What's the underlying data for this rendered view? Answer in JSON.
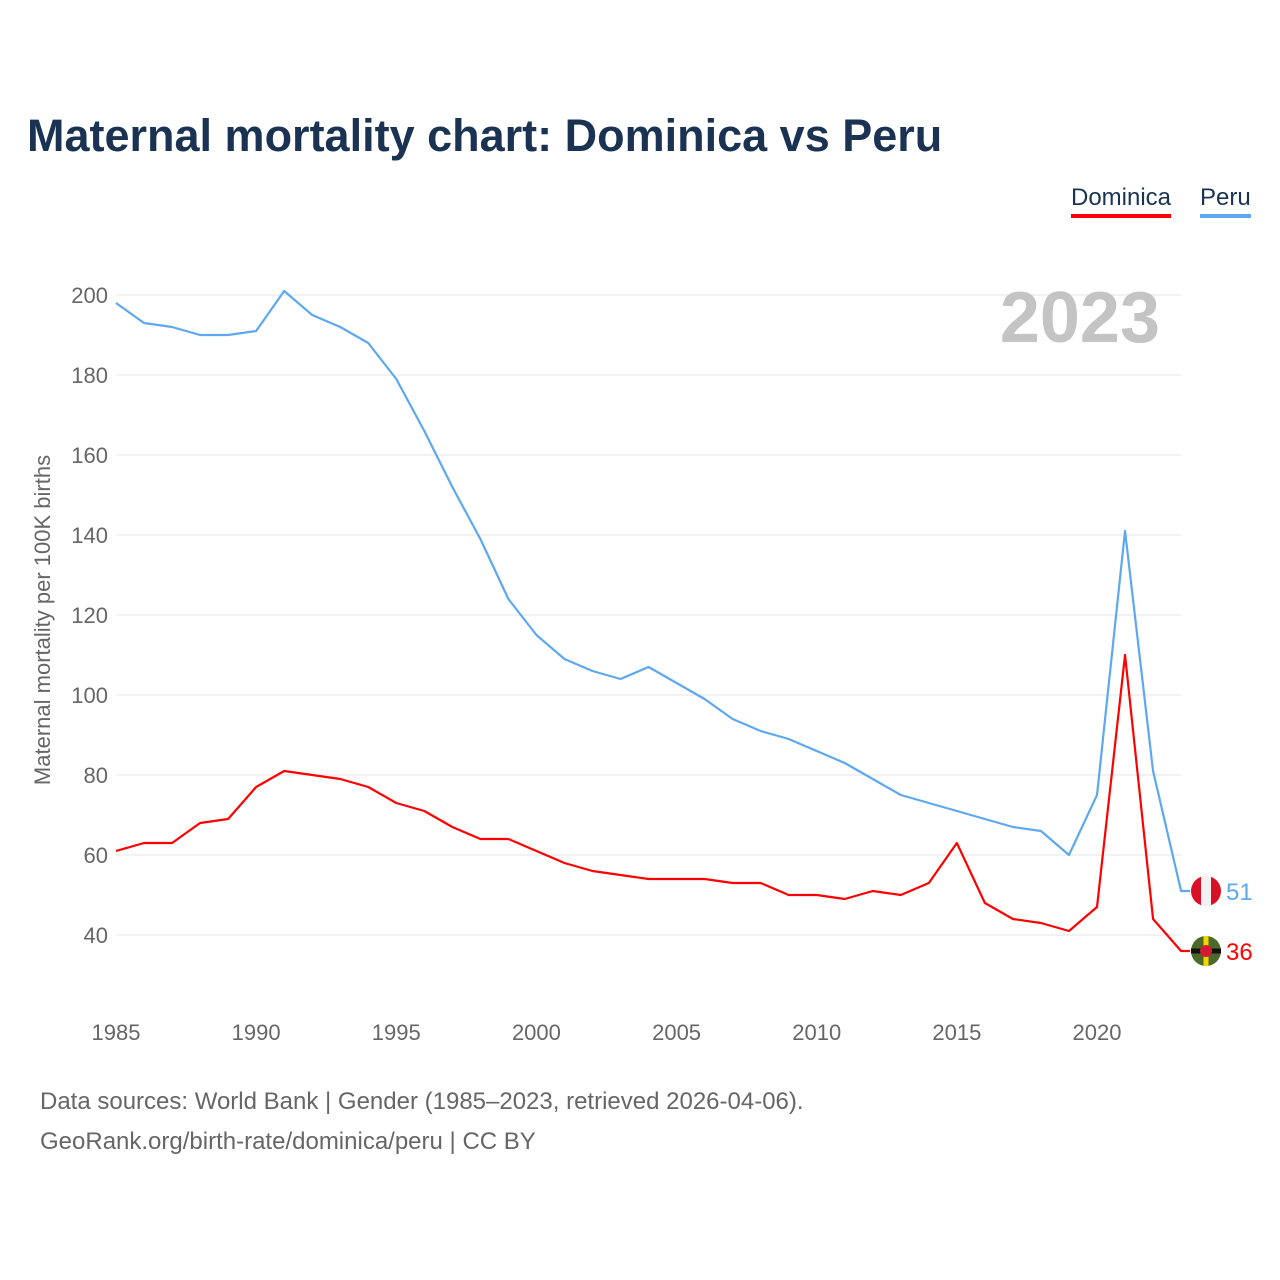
{
  "chart_data": {
    "type": "line",
    "title": "Maternal mortality chart: Dominica vs Peru",
    "ylabel": "Maternal mortality per 100K births",
    "xlabel": "",
    "year_label": "2023",
    "ylim": [
      25,
      205
    ],
    "xlim": [
      1985,
      2023
    ],
    "yticks": [
      40,
      60,
      80,
      100,
      120,
      140,
      160,
      180,
      200
    ],
    "xticks": [
      1985,
      1990,
      1995,
      2000,
      2005,
      2010,
      2015,
      2020
    ],
    "grid": true,
    "legend_position": "top-right",
    "x": [
      1985,
      1986,
      1987,
      1988,
      1989,
      1990,
      1991,
      1992,
      1993,
      1994,
      1995,
      1996,
      1997,
      1998,
      1999,
      2000,
      2001,
      2002,
      2003,
      2004,
      2005,
      2006,
      2007,
      2008,
      2009,
      2010,
      2011,
      2012,
      2013,
      2014,
      2015,
      2016,
      2017,
      2018,
      2019,
      2020,
      2021,
      2022,
      2023
    ],
    "series": [
      {
        "name": "Dominica",
        "color": "#ff0000",
        "end_label": "36",
        "values": [
          61,
          63,
          63,
          68,
          69,
          77,
          81,
          80,
          79,
          77,
          73,
          71,
          67,
          64,
          64,
          61,
          58,
          56,
          55,
          54,
          54,
          54,
          53,
          53,
          50,
          50,
          49,
          51,
          50,
          53,
          63,
          48,
          44,
          43,
          41,
          47,
          110,
          44,
          36
        ]
      },
      {
        "name": "Peru",
        "color": "#5da8ee",
        "end_label": "51",
        "values": [
          198,
          193,
          192,
          190,
          190,
          191,
          201,
          195,
          192,
          188,
          179,
          166,
          152,
          139,
          124,
          115,
          109,
          106,
          104,
          107,
          103,
          99,
          94,
          91,
          89,
          86,
          83,
          79,
          75,
          73,
          71,
          69,
          67,
          66,
          60,
          75,
          141,
          81,
          51
        ]
      }
    ]
  },
  "footer": {
    "line1": "Data sources: World Bank | Gender (1985–2023, retrieved 2026-04-06).",
    "line2": "GeoRank.org/birth-rate/dominica/peru | CC BY"
  }
}
